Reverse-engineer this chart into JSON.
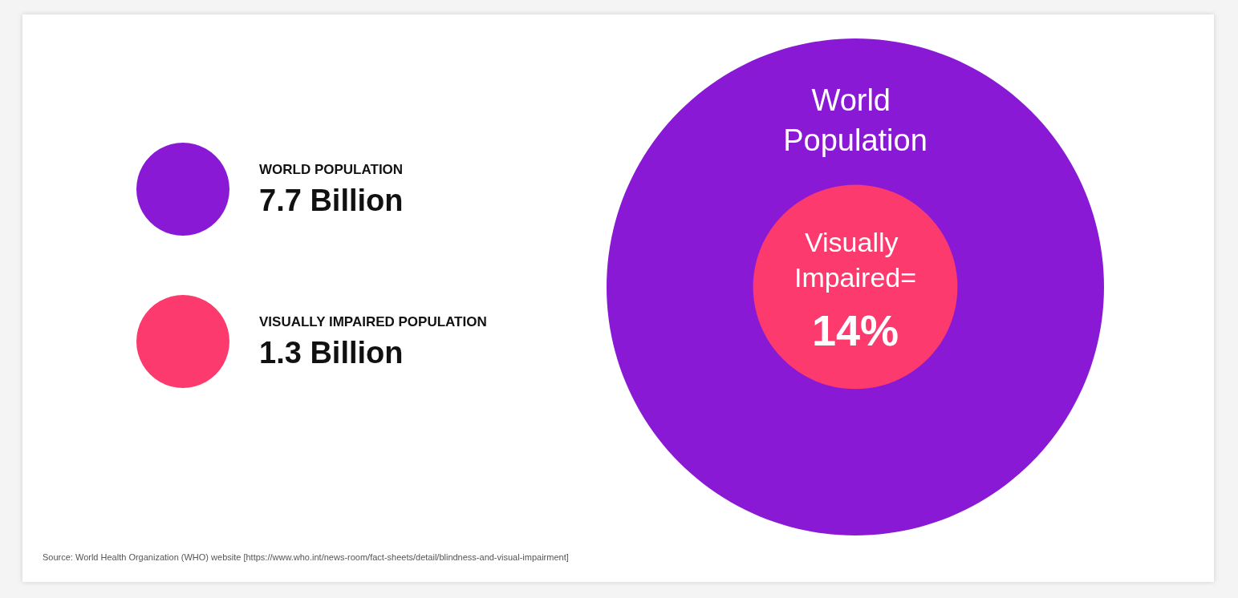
{
  "chart_data": {
    "type": "other",
    "categories": [
      "WORLD POPULATION",
      "VISUALLY IMPAIRED POPULATION"
    ],
    "values": [
      7.7,
      1.3
    ],
    "value_labels": [
      "7.7 Billion",
      "1.3 Billion"
    ],
    "colors": [
      "#8a19d6",
      "#fc3a6e"
    ],
    "annotations": [
      "World Population",
      "Visually Impaired=",
      "14%",
      "Source: World Health Organization (WHO) website [https://www.who.int/news-room/fact-sheets/detail/blindness-and-visual-impairment]"
    ]
  }
}
